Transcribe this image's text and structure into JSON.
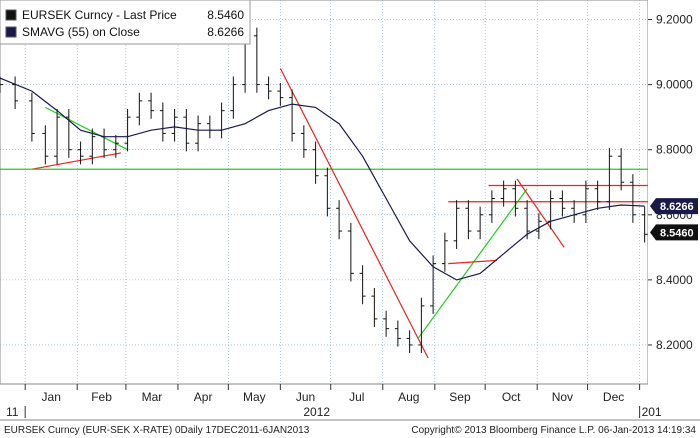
{
  "chart_data": {
    "type": "line",
    "legend": {
      "placement": "top-left",
      "entries": [
        {
          "label": "EURSEK Curncy - Last Price",
          "value": "8.5460",
          "color": "#111111"
        },
        {
          "label": "SMAVG (55) on Close",
          "value": "8.6266",
          "color": "#1a1a4a"
        }
      ]
    },
    "y_axis": {
      "ticks": [
        "8.2000",
        "8.4000",
        "8.6000",
        "8.8000",
        "9.0000",
        "9.2000"
      ],
      "range": [
        8.08,
        9.26
      ],
      "position": "right"
    },
    "x_axis": {
      "months": [
        "Jan",
        "Feb",
        "Mar",
        "Apr",
        "May",
        "Jun",
        "Jul",
        "Aug",
        "Sep",
        "Oct",
        "Nov",
        "Dec"
      ],
      "year_labels": [
        "11",
        "2012",
        "201"
      ],
      "range": [
        "2011-12-17",
        "2013-01-06"
      ]
    },
    "last_price_badge": "8.5460",
    "smavg_badge": "8.6266",
    "series": [
      {
        "name": "EURSEK Curncy - Last Price",
        "style": "bars",
        "x": [
          "2011-12-17",
          "2011-12-26",
          "2012-01-05",
          "2012-01-13",
          "2012-01-20",
          "2012-01-27",
          "2012-02-03",
          "2012-02-10",
          "2012-02-17",
          "2012-02-24",
          "2012-03-02",
          "2012-03-09",
          "2012-03-16",
          "2012-03-23",
          "2012-03-30",
          "2012-04-06",
          "2012-04-13",
          "2012-04-20",
          "2012-04-27",
          "2012-05-04",
          "2012-05-11",
          "2012-05-18",
          "2012-05-25",
          "2012-06-01",
          "2012-06-08",
          "2012-06-15",
          "2012-06-22",
          "2012-06-29",
          "2012-07-06",
          "2012-07-13",
          "2012-07-20",
          "2012-07-27",
          "2012-08-03",
          "2012-08-10",
          "2012-08-17",
          "2012-08-24",
          "2012-08-31",
          "2012-09-07",
          "2012-09-14",
          "2012-09-21",
          "2012-09-28",
          "2012-10-05",
          "2012-10-12",
          "2012-10-19",
          "2012-10-26",
          "2012-11-02",
          "2012-11-09",
          "2012-11-16",
          "2012-11-23",
          "2012-11-30",
          "2012-12-07",
          "2012-12-14",
          "2012-12-21",
          "2012-12-28",
          "2013-01-04"
        ],
        "values": [
          9.0,
          8.95,
          8.85,
          8.78,
          8.9,
          8.8,
          8.78,
          8.84,
          8.8,
          8.82,
          8.9,
          8.95,
          8.92,
          8.85,
          8.9,
          8.82,
          8.88,
          8.86,
          8.92,
          9.0,
          9.15,
          9.0,
          8.98,
          8.96,
          8.85,
          8.8,
          8.72,
          8.62,
          8.55,
          8.42,
          8.35,
          8.28,
          8.25,
          8.22,
          8.2,
          8.32,
          8.45,
          8.52,
          8.62,
          8.55,
          8.6,
          8.65,
          8.68,
          8.62,
          8.55,
          8.58,
          8.65,
          8.62,
          8.6,
          8.68,
          8.64,
          8.78,
          8.7,
          8.6,
          8.54
        ]
      },
      {
        "name": "SMAVG (55) on Close",
        "style": "line",
        "x": [
          "2011-12-17",
          "2012-01-05",
          "2012-01-20",
          "2012-02-03",
          "2012-02-17",
          "2012-03-02",
          "2012-03-16",
          "2012-03-30",
          "2012-04-13",
          "2012-04-27",
          "2012-05-11",
          "2012-05-25",
          "2012-06-08",
          "2012-06-22",
          "2012-07-06",
          "2012-07-20",
          "2012-08-03",
          "2012-08-17",
          "2012-08-31",
          "2012-09-14",
          "2012-09-28",
          "2012-10-12",
          "2012-10-26",
          "2012-11-09",
          "2012-11-23",
          "2012-12-07",
          "2012-12-21",
          "2013-01-04"
        ],
        "values": [
          9.02,
          8.98,
          8.92,
          8.86,
          8.84,
          8.84,
          8.86,
          8.87,
          8.86,
          8.86,
          8.88,
          8.92,
          8.94,
          8.93,
          8.88,
          8.78,
          8.65,
          8.52,
          8.44,
          8.4,
          8.42,
          8.48,
          8.54,
          8.58,
          8.6,
          8.62,
          8.63,
          8.6266
        ]
      }
    ],
    "trendlines": [
      {
        "color": "#22cc22",
        "x": [
          "2012-01-13",
          "2012-03-02"
        ],
        "y": [
          8.93,
          8.8
        ]
      },
      {
        "color": "#ee2222",
        "x": [
          "2012-01-05",
          "2012-02-27"
        ],
        "y": [
          8.74,
          8.79
        ]
      },
      {
        "color": "#22cc22",
        "x": [
          "2011-12-17",
          "2013-01-06"
        ],
        "y": [
          8.74,
          8.74
        ]
      },
      {
        "color": "#ee2222",
        "x": [
          "2012-06-01",
          "2012-08-28"
        ],
        "y": [
          9.05,
          8.16
        ]
      },
      {
        "color": "#22cc22",
        "x": [
          "2012-08-22",
          "2012-10-26"
        ],
        "y": [
          8.22,
          8.68
        ]
      },
      {
        "color": "#ee2222",
        "x": [
          "2012-09-09",
          "2013-01-06"
        ],
        "y": [
          8.64,
          8.64
        ]
      },
      {
        "color": "#ee2222",
        "x": [
          "2012-10-03",
          "2013-01-06"
        ],
        "y": [
          8.69,
          8.69
        ]
      },
      {
        "color": "#ee2222",
        "x": [
          "2012-10-20",
          "2012-11-17"
        ],
        "y": [
          8.71,
          8.5
        ]
      },
      {
        "color": "#ee2222",
        "x": [
          "2012-09-09",
          "2012-10-08"
        ],
        "y": [
          8.45,
          8.46
        ]
      }
    ]
  },
  "footer": {
    "left": "EURSEK Curncy (EUR-SEK X-RATE) 0Daily 17DEC2011-6JAN2013",
    "right": "Copyright© 2013 Bloomberg Finance L.P.    06-Jan-2013 14:19:34"
  },
  "colors": {
    "plot_bg": "#ffffff",
    "grid": "#7aa6c2",
    "axis_bg": "#ffffff"
  }
}
